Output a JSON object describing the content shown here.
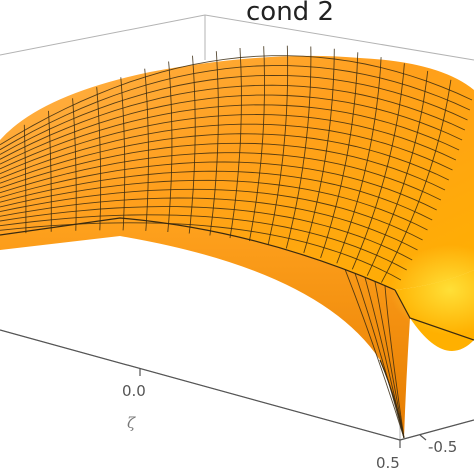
{
  "chart_data": {
    "type": "surface3d",
    "title": "cond 2",
    "xlabel": "ζ",
    "x_ticks": [
      "0.0",
      "0.5"
    ],
    "y_ticks": [
      "-0.5"
    ],
    "x_range": [
      -0.5,
      0.5
    ],
    "y_range": [
      -0.5,
      0.5
    ],
    "mesh_divisions": 20,
    "colors": {
      "surface_light": "#ffc04a",
      "surface_mid": "#ff9f1c",
      "surface_dark": "#e07800",
      "highlight": "#ffe23a",
      "mesh": "#3a2a10",
      "box": "#b3b3b3"
    }
  }
}
